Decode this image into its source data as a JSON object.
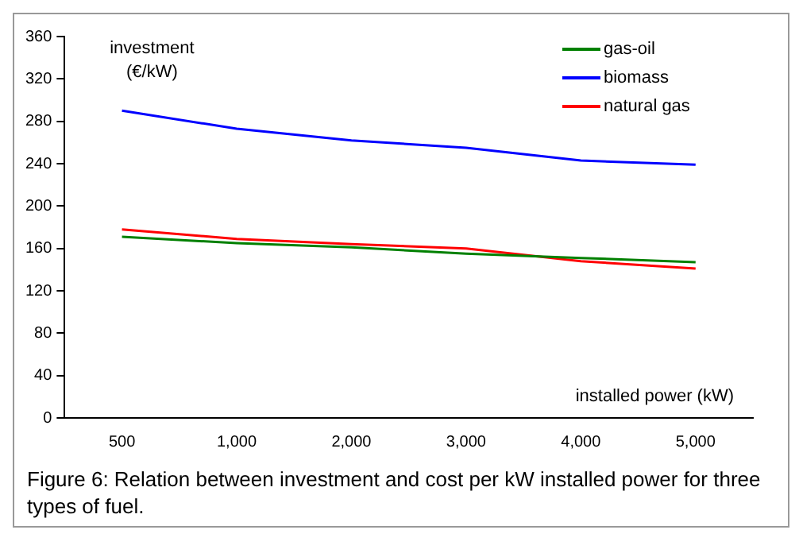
{
  "chart_data": {
    "type": "line",
    "xlabel": "installed power (kW)",
    "ylabel": "investment\n(€/kW)",
    "categories": [
      "500",
      "1,000",
      "2,000",
      "3,000",
      "4,000",
      "5,000"
    ],
    "series": [
      {
        "name": "gas-oil",
        "color": "#008000",
        "values": [
          171,
          165,
          161,
          155,
          151,
          147
        ]
      },
      {
        "name": "biomass",
        "color": "#0000ff",
        "values": [
          290,
          273,
          262,
          255,
          243,
          239
        ]
      },
      {
        "name": "natural gas",
        "color": "#ff0000",
        "values": [
          178,
          169,
          164,
          160,
          148,
          141
        ]
      }
    ],
    "ylim": [
      0,
      360
    ],
    "yticks": [
      0,
      40,
      80,
      120,
      160,
      200,
      240,
      280,
      320,
      360
    ],
    "grid": false,
    "legend": "top right",
    "marker": "none",
    "annotations": [
      "Figure 6: Relation between investment and cost per kW installed power for three types of fuel."
    ]
  }
}
